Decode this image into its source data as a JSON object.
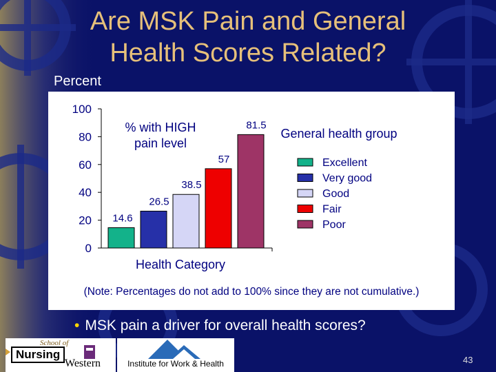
{
  "slide": {
    "title_line1": "Are MSK Pain and General",
    "title_line2": "Health Scores Related?",
    "percent_label": "Percent",
    "note": "(Note: Percentages do not add to 100% since they are not cumulative.)",
    "bullet": "MSK pain a driver for overall health scores?",
    "page_number": "43"
  },
  "logos": {
    "school_of": "School of",
    "nursing": "Nursing",
    "western": "Western",
    "institute": "Institute for Work & Health"
  },
  "colors": {
    "background": "#0a1268",
    "title": "#e6c07a",
    "chart_panel": "#ffffff"
  },
  "chart_data": {
    "type": "bar",
    "title": "% with HIGH pain level",
    "xlabel": "Health Category",
    "ylabel": "Percent",
    "ylim": [
      0,
      100
    ],
    "yticks": [
      0,
      20,
      40,
      60,
      80,
      100
    ],
    "categories": [
      "Excellent",
      "Very good",
      "Good",
      "Fair",
      "Poor"
    ],
    "values": [
      14.6,
      26.5,
      38.5,
      57,
      81.5
    ],
    "data_labels": [
      "14.6",
      "26.5",
      "38.5",
      "57",
      "81.5"
    ],
    "colors": [
      "#13b28a",
      "#2630a8",
      "#d5d6f6",
      "#ee0000",
      "#9e3466"
    ],
    "legend_title": "General health group",
    "legend_position": "right",
    "grid": false
  }
}
